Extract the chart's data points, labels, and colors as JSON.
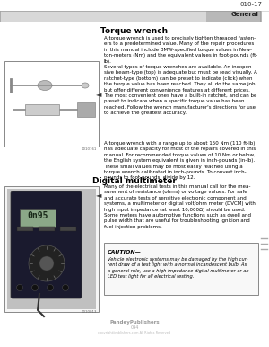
{
  "page_num": "010-17",
  "section": "General",
  "title1": "Torque wrench",
  "para1": "A torque wrench is used to precisely tighten threaded fasten-\ners to a predetermined value. Many of the repair procedures\nin this manual include BMW-specified torque values in New-\nton-meters (Nm) and the equivalent values in foot-pounds (ft-\nlb).",
  "bullet1": "Several types of torque wrenches are available. An inexpen-\nsive beam-type (top) is adequate but must be read visually. A\nratchet-type (bottom) can be preset to indicate (click) when\nthe torque value has been reached. They all do the same job,\nbut offer different convenience features at different prices.\nThe most convenient ones have a built-in ratchet, and can be\npreset to indicate when a specific torque value has been\nreached. Follow the wrench manufacturer's directions for use\nto achieve the greatest accuracy.",
  "para2": "A torque wrench with a range up to about 150 Nm (110 ft-lb)\nhas adequate capacity for most of the repairs covered in this\nmanual. For recommended torque values of 10 Nm or below,\nthe English system equivalent is given in inch-pounds (in-lb).\nThese small values may be most easily reached using a\ntorque wrench calibrated in inch-pounds. To convert inch-\npounds to foot-pounds, divide by 12.",
  "title2": "Digital multimeter",
  "bullet2": "Many of the electrical tests in this manual call for the mea-\nsurement of resistance (ohms) or voltage values. For safe\nand accurate tests of sensitive electronic component and\nsystems, a multimeter or digital volt/ohm meter (DVCM) with\nhigh input impedance (at least 10,000Ω) should be used.\nSome meters have automotive functions such as dwell and\npulse width that are useful for troubleshooting ignition and\nfuel injection problems.",
  "caution_title": "CAUTION—",
  "caution_text": "Vehicle electronic systems may be damaged by the high cur-\nrent draw of a test light with a normal incandescent bulb. As\na general rule, use a high impedance digital multimeter or an\nLED test light for all electrical testing.",
  "footer": "PandeyPublishers",
  "footer2": "044",
  "footer3": "copyright/publishers.com All Rights Reserved",
  "bg_color": "#ffffff",
  "header_line_color": "#aaaaaa",
  "section_bg": "#b0b0b0",
  "text_color": "#000000",
  "image1_bg": "#f0f0f0",
  "caution_border": "#888888",
  "font_size_title": 6.5,
  "font_size_body": 4.0,
  "font_size_header": 5.0,
  "font_size_section": 5.0,
  "font_size_caution_title": 4.5,
  "font_size_footer": 3.5
}
